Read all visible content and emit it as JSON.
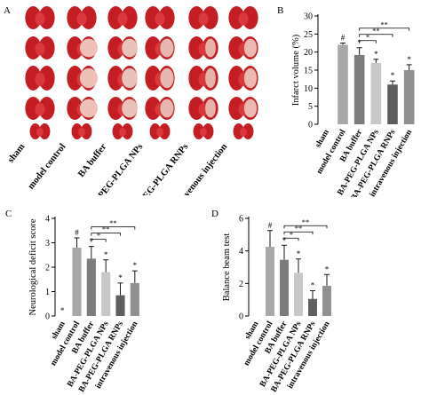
{
  "figure": {
    "panel_labels": [
      "A",
      "B",
      "C",
      "D"
    ]
  },
  "panel_a": {
    "groups": [
      "sham",
      "model control",
      "BA buffer",
      "BA-PEG-PLGA NPs",
      "BA-PEG-PLGA RNPs",
      "intravenous injection"
    ]
  },
  "chart_data": [
    {
      "panel": "B",
      "type": "bar",
      "categories": [
        "sham",
        "model control",
        "BA buffer",
        "BA-PEG-PLGA NPs",
        "BA-PEG-PLGA RNPs",
        "intravenous injection"
      ],
      "values": [
        0,
        22,
        19.2,
        17,
        11,
        15
      ],
      "errors": [
        0,
        0.5,
        2,
        1,
        1,
        1.5
      ],
      "ylabel": "Infarct volume (%)",
      "ylim": [
        0,
        30
      ],
      "yticks": [
        0,
        5,
        10,
        15,
        20,
        25,
        30
      ],
      "markers": [
        "",
        "#",
        "*",
        "*",
        "*",
        "*"
      ],
      "brackets": [
        {
          "from": 2,
          "to": 3,
          "label": "*"
        },
        {
          "from": 2,
          "to": 4,
          "label": "**"
        },
        {
          "from": 2,
          "to": 5,
          "label": "**"
        }
      ],
      "colors": [
        "#ffffff",
        "#a8a8a8",
        "#7c7c7c",
        "#c8c8c8",
        "#5e5e5e",
        "#909090"
      ]
    },
    {
      "panel": "C",
      "type": "bar",
      "categories": [
        "sham",
        "model control",
        "BA buffer",
        "BA-PEG-PLGA NPs",
        "BA-PEG-PLGA RNPs",
        "intravenous injection"
      ],
      "values": [
        0,
        2.8,
        2.35,
        1.8,
        0.85,
        1.35
      ],
      "errors": [
        0,
        0.4,
        0.5,
        0.5,
        0.5,
        0.5
      ],
      "ylabel": "Neurological deficit score",
      "ylim": [
        0,
        4
      ],
      "yticks": [
        0,
        1,
        2,
        3,
        4
      ],
      "markers": [
        "*",
        "#",
        "*",
        "*",
        "*",
        "*"
      ],
      "brackets": [
        {
          "from": 2,
          "to": 3,
          "label": "*"
        },
        {
          "from": 2,
          "to": 4,
          "label": "**"
        },
        {
          "from": 2,
          "to": 5,
          "label": "**"
        }
      ],
      "colors": [
        "#ffffff",
        "#a8a8a8",
        "#7c7c7c",
        "#c8c8c8",
        "#5e5e5e",
        "#909090"
      ]
    },
    {
      "panel": "D",
      "type": "bar",
      "categories": [
        "sham",
        "model control",
        "BA buffer",
        "BA-PEG-PLGA NPs",
        "BA-PEG-PLGA RNPs",
        "intravenous injection"
      ],
      "values": [
        0,
        4.25,
        3.45,
        2.65,
        1.05,
        1.85
      ],
      "errors": [
        0,
        1,
        0.9,
        0.85,
        0.5,
        0.7
      ],
      "ylabel": "Balance beam test",
      "ylim": [
        0,
        6
      ],
      "yticks": [
        0,
        2,
        4,
        6
      ],
      "markers": [
        "",
        "#",
        "*",
        "*",
        "*",
        "*"
      ],
      "brackets": [
        {
          "from": 2,
          "to": 3,
          "label": "*"
        },
        {
          "from": 2,
          "to": 4,
          "label": "**"
        },
        {
          "from": 2,
          "to": 5,
          "label": "**"
        }
      ],
      "colors": [
        "#ffffff",
        "#a8a8a8",
        "#7c7c7c",
        "#c8c8c8",
        "#5e5e5e",
        "#909090"
      ]
    }
  ]
}
